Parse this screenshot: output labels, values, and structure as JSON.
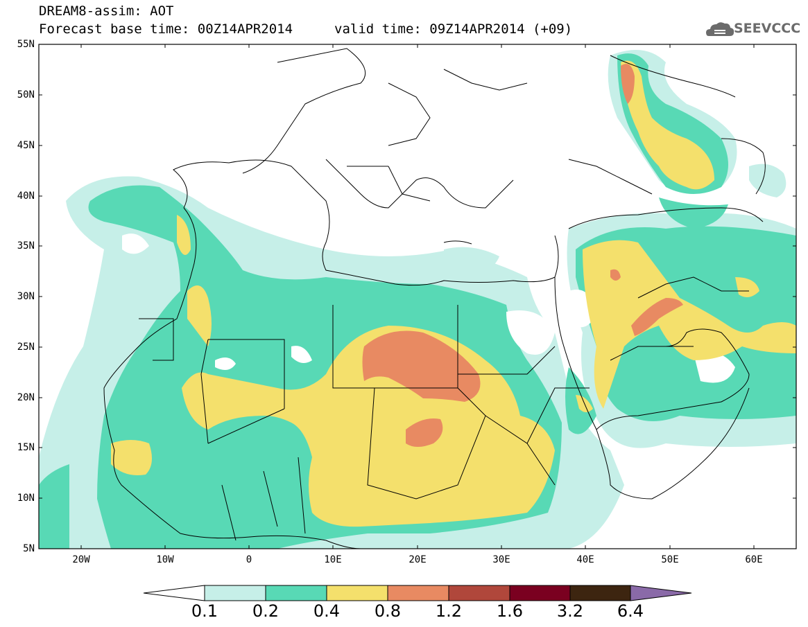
{
  "header": {
    "line1": "DREAM8-assim: AOT",
    "line2": "Forecast base time: 00Z14APR2014",
    "valid": "valid time: 09Z14APR2014 (+09)"
  },
  "logo": {
    "text": "SEEVCCC",
    "icon": "cloud-icon"
  },
  "axes": {
    "lat_labels": [
      "55N",
      "50N",
      "45N",
      "40N",
      "35N",
      "30N",
      "25N",
      "20N",
      "15N",
      "10N",
      "5N"
    ],
    "lon_labels": [
      "20W",
      "10W",
      "0",
      "10E",
      "20E",
      "30E",
      "40E",
      "50E",
      "60E"
    ]
  },
  "legend": {
    "bins": [
      "0.1",
      "0.2",
      "0.4",
      "0.8",
      "1.2",
      "1.6",
      "3.2",
      "6.4"
    ],
    "colors": [
      "#ffffff",
      "#c6efe8",
      "#58d9b5",
      "#f4e06c",
      "#e88a62",
      "#b0473b",
      "#7a0020",
      "#3d2510",
      "#8a6aa8"
    ]
  }
}
